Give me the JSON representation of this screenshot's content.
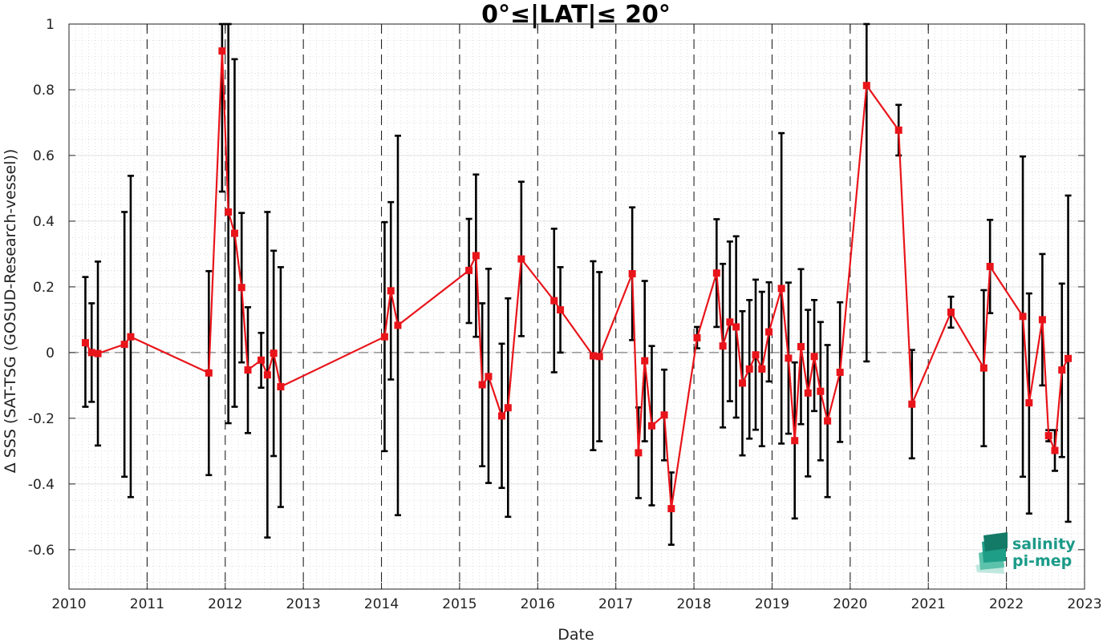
{
  "chart_data": {
    "type": "line",
    "title": "0°≤|LAT|≤ 20°",
    "xlabel": "Date",
    "ylabel": "Δ SSS (SAT-TSG (GOSUD-Research-vessel))",
    "xlim": [
      2010,
      2023
    ],
    "ylim": [
      -0.72,
      1.0
    ],
    "x_ticks": [
      "2010",
      "2011",
      "2012",
      "2013",
      "2014",
      "2015",
      "2016",
      "2017",
      "2018",
      "2019",
      "2020",
      "2021",
      "2022",
      "2023"
    ],
    "y_ticks": [
      "1",
      "0.8",
      "0.6",
      "0.4",
      "0.2",
      "0",
      "-0.2",
      "-0.4",
      "-0.6"
    ],
    "y_tick_values": [
      1,
      0.8,
      0.6,
      0.4,
      0.2,
      0,
      -0.2,
      -0.4,
      -0.6
    ],
    "year_markers": [
      2011,
      2012,
      2013,
      2014,
      2015,
      2016,
      2017,
      2018,
      2019,
      2020,
      2021,
      2022
    ],
    "zero_line": 0,
    "grid": "on",
    "line_color": "#e8141a",
    "errorbar_color": "#000000",
    "series": [
      {
        "points": [
          {
            "x": 2010.21,
            "y": 0.03,
            "err_low": -0.165,
            "err_high": 0.23
          },
          {
            "x": 2010.29,
            "y": 0.0,
            "err_low": -0.15,
            "err_high": 0.15
          },
          {
            "x": 2010.37,
            "y": -0.003,
            "err_low": -0.283,
            "err_high": 0.277
          },
          {
            "x": 2010.71,
            "y": 0.025,
            "err_low": -0.378,
            "err_high": 0.428
          },
          {
            "x": 2010.79,
            "y": 0.048,
            "err_low": -0.44,
            "err_high": 0.538
          },
          {
            "x": 2011.79,
            "y": -0.062,
            "err_low": -0.373,
            "err_high": 0.248
          },
          {
            "x": 2011.96,
            "y": 0.918,
            "err_low": 0.49,
            "err_high": 1.0
          },
          {
            "x": 2012.04,
            "y": 0.428,
            "err_low": -0.215,
            "err_high": 1.0
          },
          {
            "x": 2012.12,
            "y": 0.363,
            "err_low": -0.165,
            "err_high": 0.893
          },
          {
            "x": 2012.21,
            "y": 0.198,
            "err_low": -0.03,
            "err_high": 0.425
          },
          {
            "x": 2012.29,
            "y": -0.053,
            "err_low": -0.245,
            "err_high": 0.138
          },
          {
            "x": 2012.46,
            "y": -0.023,
            "err_low": -0.107,
            "err_high": 0.06
          },
          {
            "x": 2012.54,
            "y": -0.068,
            "err_low": -0.563,
            "err_high": 0.428
          },
          {
            "x": 2012.62,
            "y": -0.002,
            "err_low": -0.315,
            "err_high": 0.31
          },
          {
            "x": 2012.71,
            "y": -0.104,
            "err_low": -0.47,
            "err_high": 0.26
          },
          {
            "x": 2014.04,
            "y": 0.048,
            "err_low": -0.3,
            "err_high": 0.397
          },
          {
            "x": 2014.12,
            "y": 0.188,
            "err_low": -0.082,
            "err_high": 0.458
          },
          {
            "x": 2014.21,
            "y": 0.083,
            "err_low": -0.495,
            "err_high": 0.66
          },
          {
            "x": 2015.12,
            "y": 0.25,
            "err_low": 0.09,
            "err_high": 0.407
          },
          {
            "x": 2015.21,
            "y": 0.295,
            "err_low": 0.048,
            "err_high": 0.542
          },
          {
            "x": 2015.29,
            "y": -0.098,
            "err_low": -0.346,
            "err_high": 0.15
          },
          {
            "x": 2015.37,
            "y": -0.073,
            "err_low": -0.397,
            "err_high": 0.255
          },
          {
            "x": 2015.54,
            "y": -0.193,
            "err_low": -0.412,
            "err_high": 0.027
          },
          {
            "x": 2015.62,
            "y": -0.168,
            "err_low": -0.5,
            "err_high": 0.165
          },
          {
            "x": 2015.79,
            "y": 0.285,
            "err_low": 0.05,
            "err_high": 0.52
          },
          {
            "x": 2016.21,
            "y": 0.158,
            "err_low": -0.06,
            "err_high": 0.377
          },
          {
            "x": 2016.29,
            "y": 0.13,
            "err_low": 0.0,
            "err_high": 0.26
          },
          {
            "x": 2016.71,
            "y": -0.01,
            "err_low": -0.297,
            "err_high": 0.278
          },
          {
            "x": 2016.79,
            "y": -0.012,
            "err_low": -0.27,
            "err_high": 0.245
          },
          {
            "x": 2017.21,
            "y": 0.24,
            "err_low": 0.038,
            "err_high": 0.442
          },
          {
            "x": 2017.29,
            "y": -0.305,
            "err_low": -0.443,
            "err_high": -0.167
          },
          {
            "x": 2017.37,
            "y": -0.025,
            "err_low": -0.27,
            "err_high": 0.218
          },
          {
            "x": 2017.46,
            "y": -0.223,
            "err_low": -0.465,
            "err_high": 0.02
          },
          {
            "x": 2017.62,
            "y": -0.19,
            "err_low": -0.328,
            "err_high": -0.052
          },
          {
            "x": 2017.71,
            "y": -0.475,
            "err_low": -0.585,
            "err_high": -0.365
          },
          {
            "x": 2018.04,
            "y": 0.045,
            "err_low": 0.013,
            "err_high": 0.078
          },
          {
            "x": 2018.29,
            "y": 0.242,
            "err_low": 0.078,
            "err_high": 0.406
          },
          {
            "x": 2018.37,
            "y": 0.02,
            "err_low": -0.228,
            "err_high": 0.27
          },
          {
            "x": 2018.46,
            "y": 0.093,
            "err_low": -0.148,
            "err_high": 0.338
          },
          {
            "x": 2018.54,
            "y": 0.078,
            "err_low": -0.198,
            "err_high": 0.354
          },
          {
            "x": 2018.62,
            "y": -0.093,
            "err_low": -0.313,
            "err_high": 0.126
          },
          {
            "x": 2018.71,
            "y": -0.05,
            "err_low": -0.262,
            "err_high": 0.16
          },
          {
            "x": 2018.79,
            "y": -0.007,
            "err_low": -0.235,
            "err_high": 0.222
          },
          {
            "x": 2018.87,
            "y": -0.05,
            "err_low": -0.285,
            "err_high": 0.185
          },
          {
            "x": 2018.96,
            "y": 0.063,
            "err_low": -0.088,
            "err_high": 0.214
          },
          {
            "x": 2019.12,
            "y": 0.195,
            "err_low": -0.277,
            "err_high": 0.668
          },
          {
            "x": 2019.21,
            "y": -0.017,
            "err_low": -0.247,
            "err_high": 0.213
          },
          {
            "x": 2019.29,
            "y": -0.268,
            "err_low": -0.505,
            "err_high": -0.03
          },
          {
            "x": 2019.37,
            "y": 0.018,
            "err_low": -0.218,
            "err_high": 0.254
          },
          {
            "x": 2019.46,
            "y": -0.123,
            "err_low": -0.377,
            "err_high": 0.13
          },
          {
            "x": 2019.54,
            "y": -0.012,
            "err_low": -0.178,
            "err_high": 0.16
          },
          {
            "x": 2019.62,
            "y": -0.118,
            "err_low": -0.328,
            "err_high": 0.093
          },
          {
            "x": 2019.71,
            "y": -0.208,
            "err_low": -0.44,
            "err_high": 0.023
          },
          {
            "x": 2019.87,
            "y": -0.06,
            "err_low": -0.272,
            "err_high": 0.153
          },
          {
            "x": 2020.21,
            "y": 0.813,
            "err_low": -0.027,
            "err_high": 1.0
          },
          {
            "x": 2020.62,
            "y": 0.677,
            "err_low": 0.6,
            "err_high": 0.754
          },
          {
            "x": 2020.79,
            "y": -0.157,
            "err_low": -0.322,
            "err_high": 0.008
          },
          {
            "x": 2021.29,
            "y": 0.123,
            "err_low": 0.076,
            "err_high": 0.17
          },
          {
            "x": 2021.71,
            "y": -0.047,
            "err_low": -0.285,
            "err_high": 0.19
          },
          {
            "x": 2021.79,
            "y": 0.262,
            "err_low": 0.12,
            "err_high": 0.404
          },
          {
            "x": 2022.21,
            "y": 0.11,
            "err_low": -0.378,
            "err_high": 0.597
          },
          {
            "x": 2022.29,
            "y": -0.153,
            "err_low": -0.49,
            "err_high": 0.18
          },
          {
            "x": 2022.46,
            "y": 0.1,
            "err_low": -0.1,
            "err_high": 0.3
          },
          {
            "x": 2022.54,
            "y": -0.253,
            "err_low": -0.27,
            "err_high": -0.236
          },
          {
            "x": 2022.62,
            "y": -0.298,
            "err_low": -0.36,
            "err_high": -0.236
          },
          {
            "x": 2022.71,
            "y": -0.053,
            "err_low": -0.318,
            "err_high": 0.21
          },
          {
            "x": 2022.79,
            "y": -0.018,
            "err_low": -0.515,
            "err_high": 0.478
          }
        ]
      }
    ]
  },
  "logo": {
    "line1": "salinity",
    "line2": "pi-mep",
    "color": "#1a9a88"
  }
}
